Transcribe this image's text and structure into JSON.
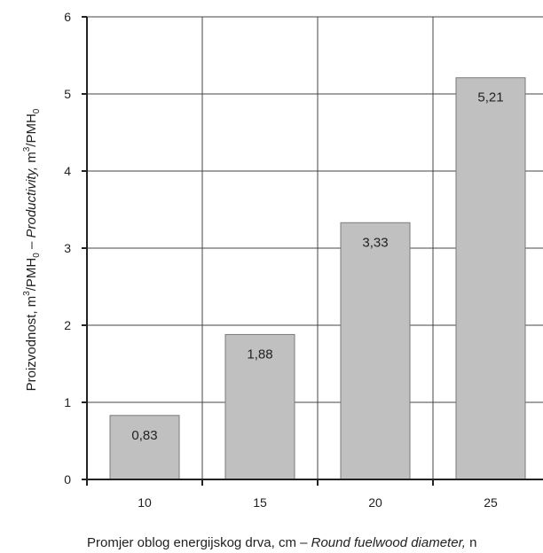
{
  "chart_data": {
    "type": "bar",
    "categories": [
      "10",
      "15",
      "20",
      "25"
    ],
    "values": [
      0.83,
      1.88,
      3.33,
      5.21
    ],
    "value_labels": [
      "0,83",
      "1,88",
      "3,33",
      "5,21"
    ],
    "ylim": [
      0,
      6
    ],
    "yticks": [
      "0",
      "1",
      "2",
      "3",
      "4",
      "5",
      "6"
    ],
    "grid": true,
    "bar_color": "#c0c0c0",
    "bar_edge_color": "#7a7a7a",
    "ylabel": {
      "part1": "Proizvodnost, m",
      "sup1": "3",
      "part2": "/PMH",
      "sub1": "0",
      "part3": " – ",
      "italic": "Productivity,",
      "part4": " m",
      "sup2": "3",
      "part5": "/PMH",
      "sub2": "0"
    },
    "xlabel": {
      "plain": "Promjer oblog energijskog drva, cm – ",
      "italic": "Round fuelwood diameter,",
      "tail": " n"
    }
  }
}
